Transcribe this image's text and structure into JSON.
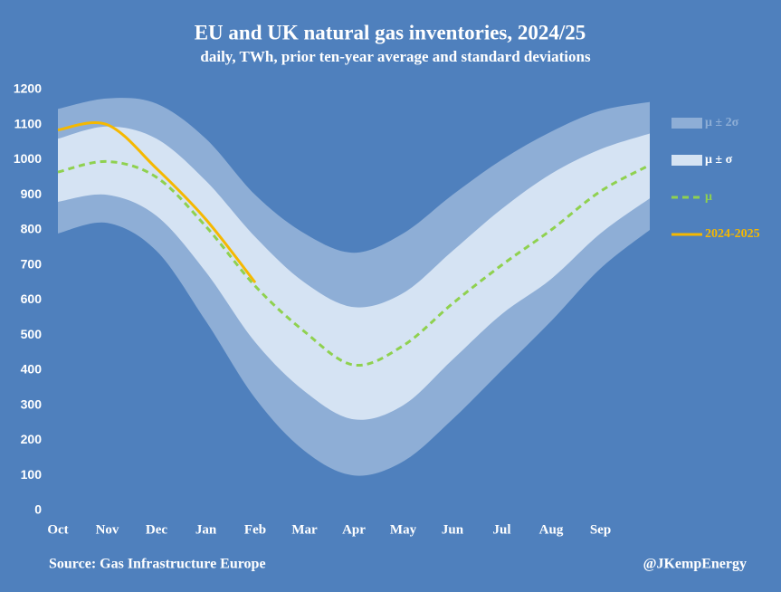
{
  "chart_data": {
    "type": "line",
    "title": "EU and UK natural gas inventories, 2024/25",
    "subtitle": "daily, TWh, prior ten-year average and standard deviations",
    "source": "Source: Gas Infrastructure Europe",
    "credit": "@JKempEnergy",
    "categories": [
      "Oct",
      "Nov",
      "Dec",
      "Jan",
      "Feb",
      "Mar",
      "Apr",
      "May",
      "Jun",
      "Jul",
      "Aug",
      "Sep",
      null
    ],
    "ylim": [
      0,
      1200
    ],
    "yticks": [
      0,
      100,
      200,
      300,
      400,
      500,
      600,
      700,
      800,
      900,
      1000,
      1100,
      1200
    ],
    "bands": [
      {
        "name": "μ ± 2σ",
        "color": "#8eaed6",
        "high": [
          1145,
          1175,
          1160,
          1060,
          900,
          790,
          735,
          790,
          900,
          1000,
          1080,
          1140,
          1165
        ],
        "low": [
          790,
          820,
          740,
          540,
          320,
          170,
          100,
          140,
          260,
          400,
          540,
          690,
          800
        ]
      },
      {
        "name": "μ ± σ",
        "color": "#d5e3f3",
        "high": [
          1060,
          1095,
          1060,
          940,
          780,
          650,
          580,
          620,
          740,
          860,
          960,
          1030,
          1075
        ],
        "low": [
          880,
          900,
          840,
          680,
          480,
          340,
          260,
          300,
          430,
          560,
          660,
          790,
          890
        ]
      }
    ],
    "series": [
      {
        "name": "μ",
        "color": "#8fd14f",
        "dashed": true,
        "values": [
          965,
          995,
          950,
          810,
          640,
          510,
          415,
          470,
          590,
          700,
          800,
          910,
          985
        ]
      },
      {
        "name": "2024-2025",
        "color": "#f5b800",
        "dashed": false,
        "values": [
          1085,
          1100,
          975,
          830,
          650,
          null,
          null,
          null,
          null,
          null,
          null,
          null,
          null
        ]
      }
    ]
  }
}
